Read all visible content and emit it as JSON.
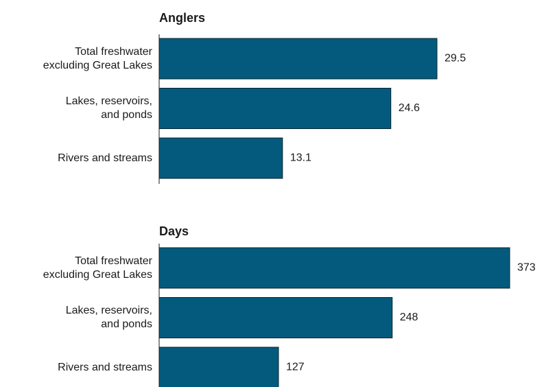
{
  "chart_data": [
    {
      "type": "bar",
      "title": "Anglers",
      "categories": [
        "Total freshwater\nexcluding Great Lakes",
        "Lakes, reservoirs,\nand ponds",
        "Rivers and streams"
      ],
      "values": [
        29.5,
        24.6,
        13.1
      ],
      "color": "#045a7c"
    },
    {
      "type": "bar",
      "title": "Days",
      "categories": [
        "Total freshwater\nexcluding Great Lakes",
        "Lakes, reservoirs,\nand ponds",
        "Rivers and streams"
      ],
      "values": [
        373,
        248,
        127
      ],
      "color": "#045a7c"
    }
  ]
}
